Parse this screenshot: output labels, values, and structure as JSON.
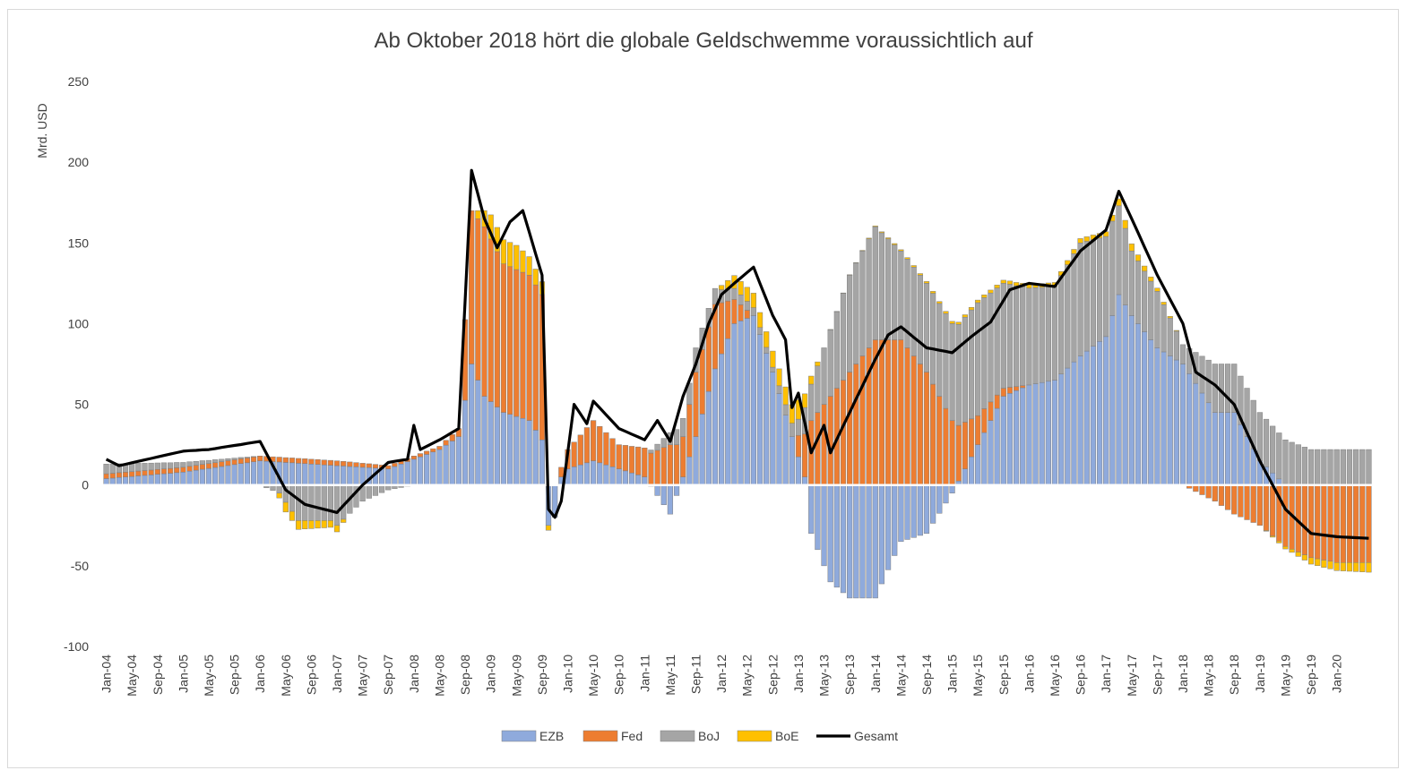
{
  "chart_data": {
    "type": "bar",
    "stacked": true,
    "title": "Ab Oktober 2018 hört die globale Geldschwemme voraussichtlich auf",
    "ylabel": "Mrd. USD",
    "xlabel": "",
    "ylim": [
      -100,
      250
    ],
    "y_ticks": [
      250,
      200,
      150,
      100,
      50,
      0,
      -50,
      -100
    ],
    "x_start": "Jan-04",
    "x_end": "Jun-20",
    "x_tick_labels": [
      "Jan-04",
      "May-04",
      "Sep-04",
      "Jan-05",
      "May-05",
      "Sep-05",
      "Jan-06",
      "May-06",
      "Sep-06",
      "Jan-07",
      "May-07",
      "Sep-07",
      "Jan-08",
      "May-08",
      "Sep-08",
      "Jan-09",
      "May-09",
      "Sep-09",
      "Jan-10",
      "May-10",
      "Sep-10",
      "Jan-11",
      "May-11",
      "Sep-11",
      "Jan-12",
      "May-12",
      "Sep-12",
      "Jan-13",
      "May-13",
      "Sep-13",
      "Jan-14",
      "May-14",
      "Sep-14",
      "Jan-15",
      "May-15",
      "Sep-15",
      "Jan-16",
      "May-16",
      "Sep-16",
      "Jan-17",
      "May-17",
      "Sep-17",
      "Jan-18",
      "May-18",
      "Sep-18",
      "Jan-19",
      "May-19",
      "Sep-19",
      "Jan-20"
    ],
    "grid": false,
    "legend_position": "bottom",
    "series_keyframes_note": "values at selected months (month label: value); intermediate months are linear interpolation",
    "series": [
      {
        "name": "EZB",
        "color": "#8faadc",
        "kind": "bar",
        "keyframes": [
          [
            "Jan-04",
            4
          ],
          [
            "Jan-05",
            8
          ],
          [
            "Jan-06",
            15
          ],
          [
            "Jan-07",
            12
          ],
          [
            "Sep-07",
            10
          ],
          [
            "May-08",
            22
          ],
          [
            "Aug-08",
            30
          ],
          [
            "Oct-08",
            75
          ],
          [
            "Nov-08",
            65
          ],
          [
            "Dec-08",
            55
          ],
          [
            "Mar-09",
            45
          ],
          [
            "Jul-09",
            40
          ],
          [
            "Sep-09",
            28
          ],
          [
            "Oct-09",
            -25
          ],
          [
            "Nov-09",
            -20
          ],
          [
            "Dec-09",
            5
          ],
          [
            "Jan-10",
            10
          ],
          [
            "May-10",
            15
          ],
          [
            "Sep-10",
            10
          ],
          [
            "Jan-11",
            5
          ],
          [
            "May-11",
            -18
          ],
          [
            "Jul-11",
            5
          ],
          [
            "Sep-11",
            30
          ],
          [
            "Dec-11",
            72
          ],
          [
            "Mar-12",
            100
          ],
          [
            "Jun-12",
            105
          ],
          [
            "Sep-12",
            70
          ],
          [
            "Dec-12",
            30
          ],
          [
            "Feb-13",
            5
          ],
          [
            "Mar-13",
            -30
          ],
          [
            "Jun-13",
            -60
          ],
          [
            "Sep-13",
            -70
          ],
          [
            "Jan-14",
            -70
          ],
          [
            "May-14",
            -35
          ],
          [
            "Sep-14",
            -30
          ],
          [
            "Jan-15",
            -5
          ],
          [
            "May-15",
            25
          ],
          [
            "Sep-15",
            55
          ],
          [
            "Jan-16",
            62
          ],
          [
            "May-16",
            65
          ],
          [
            "Sep-16",
            80
          ],
          [
            "Jan-17",
            92
          ],
          [
            "Mar-17",
            118
          ],
          [
            "May-17",
            105
          ],
          [
            "Sep-17",
            85
          ],
          [
            "Jan-18",
            75
          ],
          [
            "Jun-18",
            45
          ],
          [
            "Sep-18",
            45
          ],
          [
            "Jan-19",
            15
          ],
          [
            "May-19",
            0
          ],
          [
            "Jun-20",
            0
          ]
        ]
      },
      {
        "name": "Fed",
        "color": "#ed7d31",
        "kind": "bar",
        "keyframes": [
          [
            "Jan-04",
            3
          ],
          [
            "Jan-06",
            3
          ],
          [
            "Jan-07",
            3
          ],
          [
            "Sep-07",
            2
          ],
          [
            "May-08",
            2
          ],
          [
            "Aug-08",
            5
          ],
          [
            "Oct-08",
            95
          ],
          [
            "Dec-08",
            105
          ],
          [
            "Mar-09",
            92
          ],
          [
            "Jul-09",
            90
          ],
          [
            "Sep-09",
            90
          ],
          [
            "Oct-09",
            0
          ],
          [
            "Nov-09",
            0
          ],
          [
            "Jan-10",
            12
          ],
          [
            "May-10",
            25
          ],
          [
            "Sep-10",
            15
          ],
          [
            "Jan-11",
            18
          ],
          [
            "May-11",
            25
          ],
          [
            "Jul-11",
            25
          ],
          [
            "Sep-11",
            40
          ],
          [
            "Dec-11",
            40
          ],
          [
            "Mar-12",
            15
          ],
          [
            "Jun-12",
            0
          ],
          [
            "Sep-12",
            0
          ],
          [
            "Dec-12",
            0
          ],
          [
            "Mar-13",
            40
          ],
          [
            "Sep-13",
            70
          ],
          [
            "Jan-14",
            90
          ],
          [
            "May-14",
            90
          ],
          [
            "Sep-14",
            70
          ],
          [
            "Jan-15",
            40
          ],
          [
            "May-15",
            18
          ],
          [
            "Sep-15",
            5
          ],
          [
            "Jan-16",
            0
          ],
          [
            "Sep-16",
            0
          ],
          [
            "Jan-17",
            0
          ],
          [
            "Jan-18",
            0
          ],
          [
            "Jun-18",
            -10
          ],
          [
            "Sep-18",
            -18
          ],
          [
            "Jan-19",
            -25
          ],
          [
            "May-19",
            -38
          ],
          [
            "Sep-19",
            -45
          ],
          [
            "Jan-20",
            -48
          ],
          [
            "Jun-20",
            -48
          ]
        ]
      },
      {
        "name": "BoJ",
        "color": "#a5a5a5",
        "kind": "bar",
        "keyframes": [
          [
            "Jan-04",
            6
          ],
          [
            "Jan-05",
            3
          ],
          [
            "Jan-06",
            0
          ],
          [
            "Apr-06",
            -5
          ],
          [
            "Jul-06",
            -22
          ],
          [
            "Dec-06",
            -22
          ],
          [
            "Jan-07",
            -25
          ],
          [
            "May-07",
            -10
          ],
          [
            "Sep-07",
            -3
          ],
          [
            "Jan-08",
            0
          ],
          [
            "May-08",
            0
          ],
          [
            "Dec-08",
            0
          ],
          [
            "Sep-09",
            0
          ],
          [
            "Jan-10",
            0
          ],
          [
            "Jan-11",
            0
          ],
          [
            "Sep-11",
            15
          ],
          [
            "Jan-12",
            8
          ],
          [
            "Sep-12",
            3
          ],
          [
            "Jan-13",
            10
          ],
          [
            "May-13",
            35
          ],
          [
            "Sep-13",
            60
          ],
          [
            "Jan-14",
            70
          ],
          [
            "May-14",
            55
          ],
          [
            "Sep-14",
            55
          ],
          [
            "Jan-15",
            60
          ],
          [
            "May-15",
            70
          ],
          [
            "Sep-15",
            65
          ],
          [
            "Jan-16",
            60
          ],
          [
            "May-16",
            58
          ],
          [
            "Sep-16",
            70
          ],
          [
            "Jan-17",
            62
          ],
          [
            "Mar-17",
            55
          ],
          [
            "May-17",
            40
          ],
          [
            "Sep-17",
            35
          ],
          [
            "Jan-18",
            12
          ],
          [
            "Jun-18",
            30
          ],
          [
            "Sep-18",
            30
          ],
          [
            "Jan-19",
            30
          ],
          [
            "May-19",
            28
          ],
          [
            "Sep-19",
            22
          ],
          [
            "Jan-20",
            22
          ],
          [
            "Jun-20",
            22
          ]
        ]
      },
      {
        "name": "BoE",
        "color": "#ffc000",
        "kind": "bar",
        "keyframes": [
          [
            "Jan-04",
            0
          ],
          [
            "Mar-06",
            0
          ],
          [
            "May-06",
            -6
          ],
          [
            "Jan-07",
            -4
          ],
          [
            "Mar-07",
            0
          ],
          [
            "Sep-08",
            0
          ],
          [
            "Oct-08",
            0
          ],
          [
            "Jan-09",
            15
          ],
          [
            "May-09",
            15
          ],
          [
            "Sep-09",
            8
          ],
          [
            "Oct-09",
            -3
          ],
          [
            "Nov-09",
            0
          ],
          [
            "Jan-10",
            0
          ],
          [
            "Jan-11",
            0
          ],
          [
            "Sep-11",
            0
          ],
          [
            "Dec-11",
            0
          ],
          [
            "Mar-12",
            8
          ],
          [
            "Sep-12",
            10
          ],
          [
            "Jan-13",
            12
          ],
          [
            "Mar-13",
            5
          ],
          [
            "May-13",
            0
          ],
          [
            "Jan-17",
            3
          ],
          [
            "Apr-17",
            5
          ],
          [
            "Sep-17",
            2
          ],
          [
            "Jan-18",
            0
          ],
          [
            "Jun-18",
            0
          ],
          [
            "Jan-19",
            0
          ],
          [
            "Jun-19",
            -2
          ],
          [
            "Sep-19",
            -4
          ],
          [
            "Jan-20",
            -5
          ],
          [
            "Jun-20",
            -6
          ]
        ]
      },
      {
        "name": "Gesamt",
        "color": "#000000",
        "kind": "line",
        "keyframes": [
          [
            "Jan-04",
            16
          ],
          [
            "Mar-04",
            12
          ],
          [
            "Jan-05",
            21
          ],
          [
            "May-05",
            22
          ],
          [
            "Jan-06",
            27
          ],
          [
            "May-06",
            -3
          ],
          [
            "Aug-06",
            -12
          ],
          [
            "Jan-07",
            -17
          ],
          [
            "May-07",
            0
          ],
          [
            "Sep-07",
            14
          ],
          [
            "Dec-07",
            16
          ],
          [
            "Jan-08",
            37
          ],
          [
            "Feb-08",
            22
          ],
          [
            "May-08",
            28
          ],
          [
            "Aug-08",
            35
          ],
          [
            "Oct-08",
            195
          ],
          [
            "Dec-08",
            165
          ],
          [
            "Feb-09",
            147
          ],
          [
            "Apr-09",
            163
          ],
          [
            "Jun-09",
            170
          ],
          [
            "Sep-09",
            130
          ],
          [
            "Oct-09",
            -15
          ],
          [
            "Nov-09",
            -20
          ],
          [
            "Dec-09",
            -10
          ],
          [
            "Feb-10",
            50
          ],
          [
            "Apr-10",
            38
          ],
          [
            "May-10",
            52
          ],
          [
            "Sep-10",
            35
          ],
          [
            "Jan-11",
            28
          ],
          [
            "Mar-11",
            40
          ],
          [
            "May-11",
            27
          ],
          [
            "Jul-11",
            55
          ],
          [
            "Sep-11",
            75
          ],
          [
            "Nov-11",
            100
          ],
          [
            "Jan-12",
            118
          ],
          [
            "Mar-12",
            125
          ],
          [
            "Jun-12",
            135
          ],
          [
            "Sep-12",
            105
          ],
          [
            "Nov-12",
            90
          ],
          [
            "Dec-12",
            48
          ],
          [
            "Jan-13",
            57
          ],
          [
            "Mar-13",
            20
          ],
          [
            "May-13",
            37
          ],
          [
            "Jun-13",
            20
          ],
          [
            "Sep-13",
            45
          ],
          [
            "Jan-14",
            78
          ],
          [
            "Mar-14",
            93
          ],
          [
            "May-14",
            98
          ],
          [
            "Sep-14",
            85
          ],
          [
            "Jan-15",
            82
          ],
          [
            "Apr-15",
            92
          ],
          [
            "Jul-15",
            101
          ],
          [
            "Oct-15",
            121
          ],
          [
            "Jan-16",
            125
          ],
          [
            "May-16",
            123
          ],
          [
            "Sep-16",
            145
          ],
          [
            "Jan-17",
            158
          ],
          [
            "Mar-17",
            182
          ],
          [
            "May-17",
            165
          ],
          [
            "Sep-17",
            130
          ],
          [
            "Jan-18",
            100
          ],
          [
            "Mar-18",
            70
          ],
          [
            "Jun-18",
            62
          ],
          [
            "Sep-18",
            50
          ],
          [
            "Jan-19",
            15
          ],
          [
            "May-19",
            -15
          ],
          [
            "Sep-19",
            -30
          ],
          [
            "Jan-20",
            -32
          ],
          [
            "Jun-20",
            -33
          ]
        ]
      }
    ]
  }
}
